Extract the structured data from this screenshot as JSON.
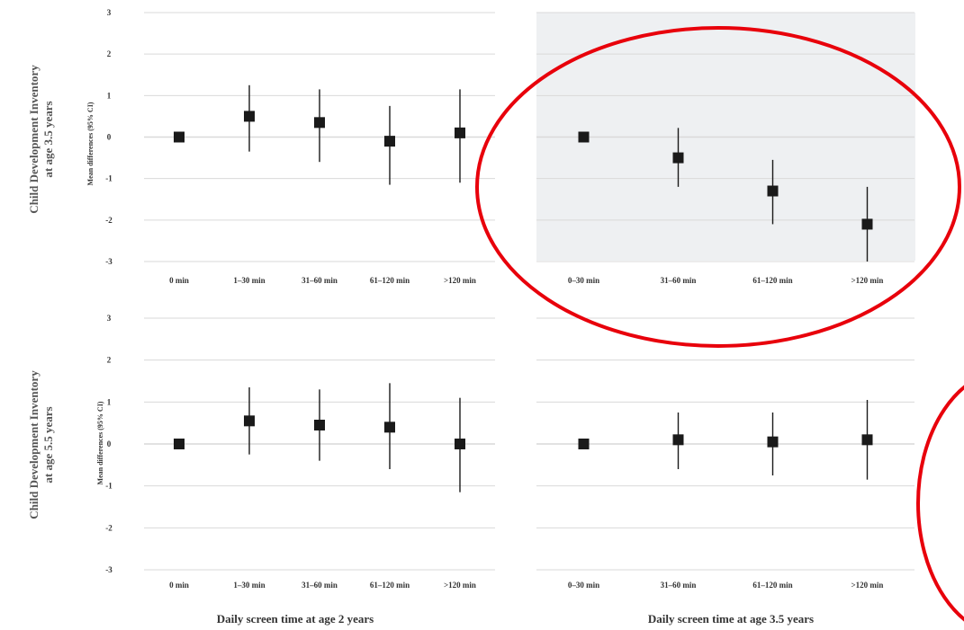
{
  "colors": {
    "background": "#ffffff",
    "highlighted_panel": "#eef0f2",
    "gridline": "#d9d9d9",
    "marker": "#1a1a1a",
    "annotation_circle": "#e8000b"
  },
  "rows": [
    {
      "label_line1": "Child Development Inventory",
      "label_line2": "at age 3.5 years"
    },
    {
      "label_line1": "Child Development Inventory",
      "label_line2": "at age 5.5 years"
    }
  ],
  "ylabel": "Mean differences (95% CI)",
  "x_titles": [
    "Daily screen time at age 2 years",
    "Daily screen time at age 3.5 years"
  ],
  "chart_data": [
    {
      "type": "scatter",
      "panel": "age 2 exposure / outcome at 3.5 years",
      "ylim": [
        -3,
        3
      ],
      "yticks": [
        3,
        2,
        1,
        0,
        -1,
        -2,
        -3
      ],
      "categories": [
        "0 min",
        "1–30 min",
        "31–60 min",
        "61–120 min",
        ">120 min"
      ],
      "values": [
        0,
        0.5,
        0.35,
        -0.1,
        0.1
      ],
      "ci_low": [
        0,
        -0.35,
        -0.6,
        -1.15,
        -1.1
      ],
      "ci_high": [
        0,
        1.25,
        1.15,
        0.75,
        1.15
      ],
      "highlighted": false
    },
    {
      "type": "scatter",
      "panel": "age 3.5 exposure / outcome at 3.5 years",
      "ylim": [
        -3,
        3
      ],
      "categories": [
        "0–30 min",
        "31–60 min",
        "61–120 min",
        ">120 min"
      ],
      "values": [
        0,
        -0.5,
        -1.3,
        -2.1
      ],
      "ci_low": [
        0,
        -1.2,
        -2.1,
        -3.0
      ],
      "ci_high": [
        0,
        0.22,
        -0.55,
        -1.2
      ],
      "highlighted": true
    },
    {
      "type": "scatter",
      "panel": "age 2 exposure / outcome at 5.5 years",
      "ylim": [
        -3,
        3
      ],
      "yticks": [
        3,
        2,
        1,
        0,
        -1,
        -2,
        -3
      ],
      "categories": [
        "0 min",
        "1–30 min",
        "31–60 min",
        "61–120 min",
        ">120 min"
      ],
      "values": [
        0,
        0.55,
        0.45,
        0.4,
        0
      ],
      "ci_low": [
        0,
        -0.25,
        -0.4,
        -0.6,
        -1.15
      ],
      "ci_high": [
        0,
        1.35,
        1.3,
        1.45,
        1.1
      ],
      "highlighted": false
    },
    {
      "type": "scatter",
      "panel": "age 3.5 exposure / outcome at 5.5 years",
      "ylim": [
        -3,
        3
      ],
      "categories": [
        "0–30 min",
        "31–60 min",
        "61–120 min",
        ">120 min"
      ],
      "values": [
        0,
        0.1,
        0.05,
        0.1
      ],
      "ci_low": [
        0,
        -0.6,
        -0.75,
        -0.85
      ],
      "ci_high": [
        0,
        0.75,
        0.75,
        1.05
      ],
      "highlighted": false
    }
  ]
}
